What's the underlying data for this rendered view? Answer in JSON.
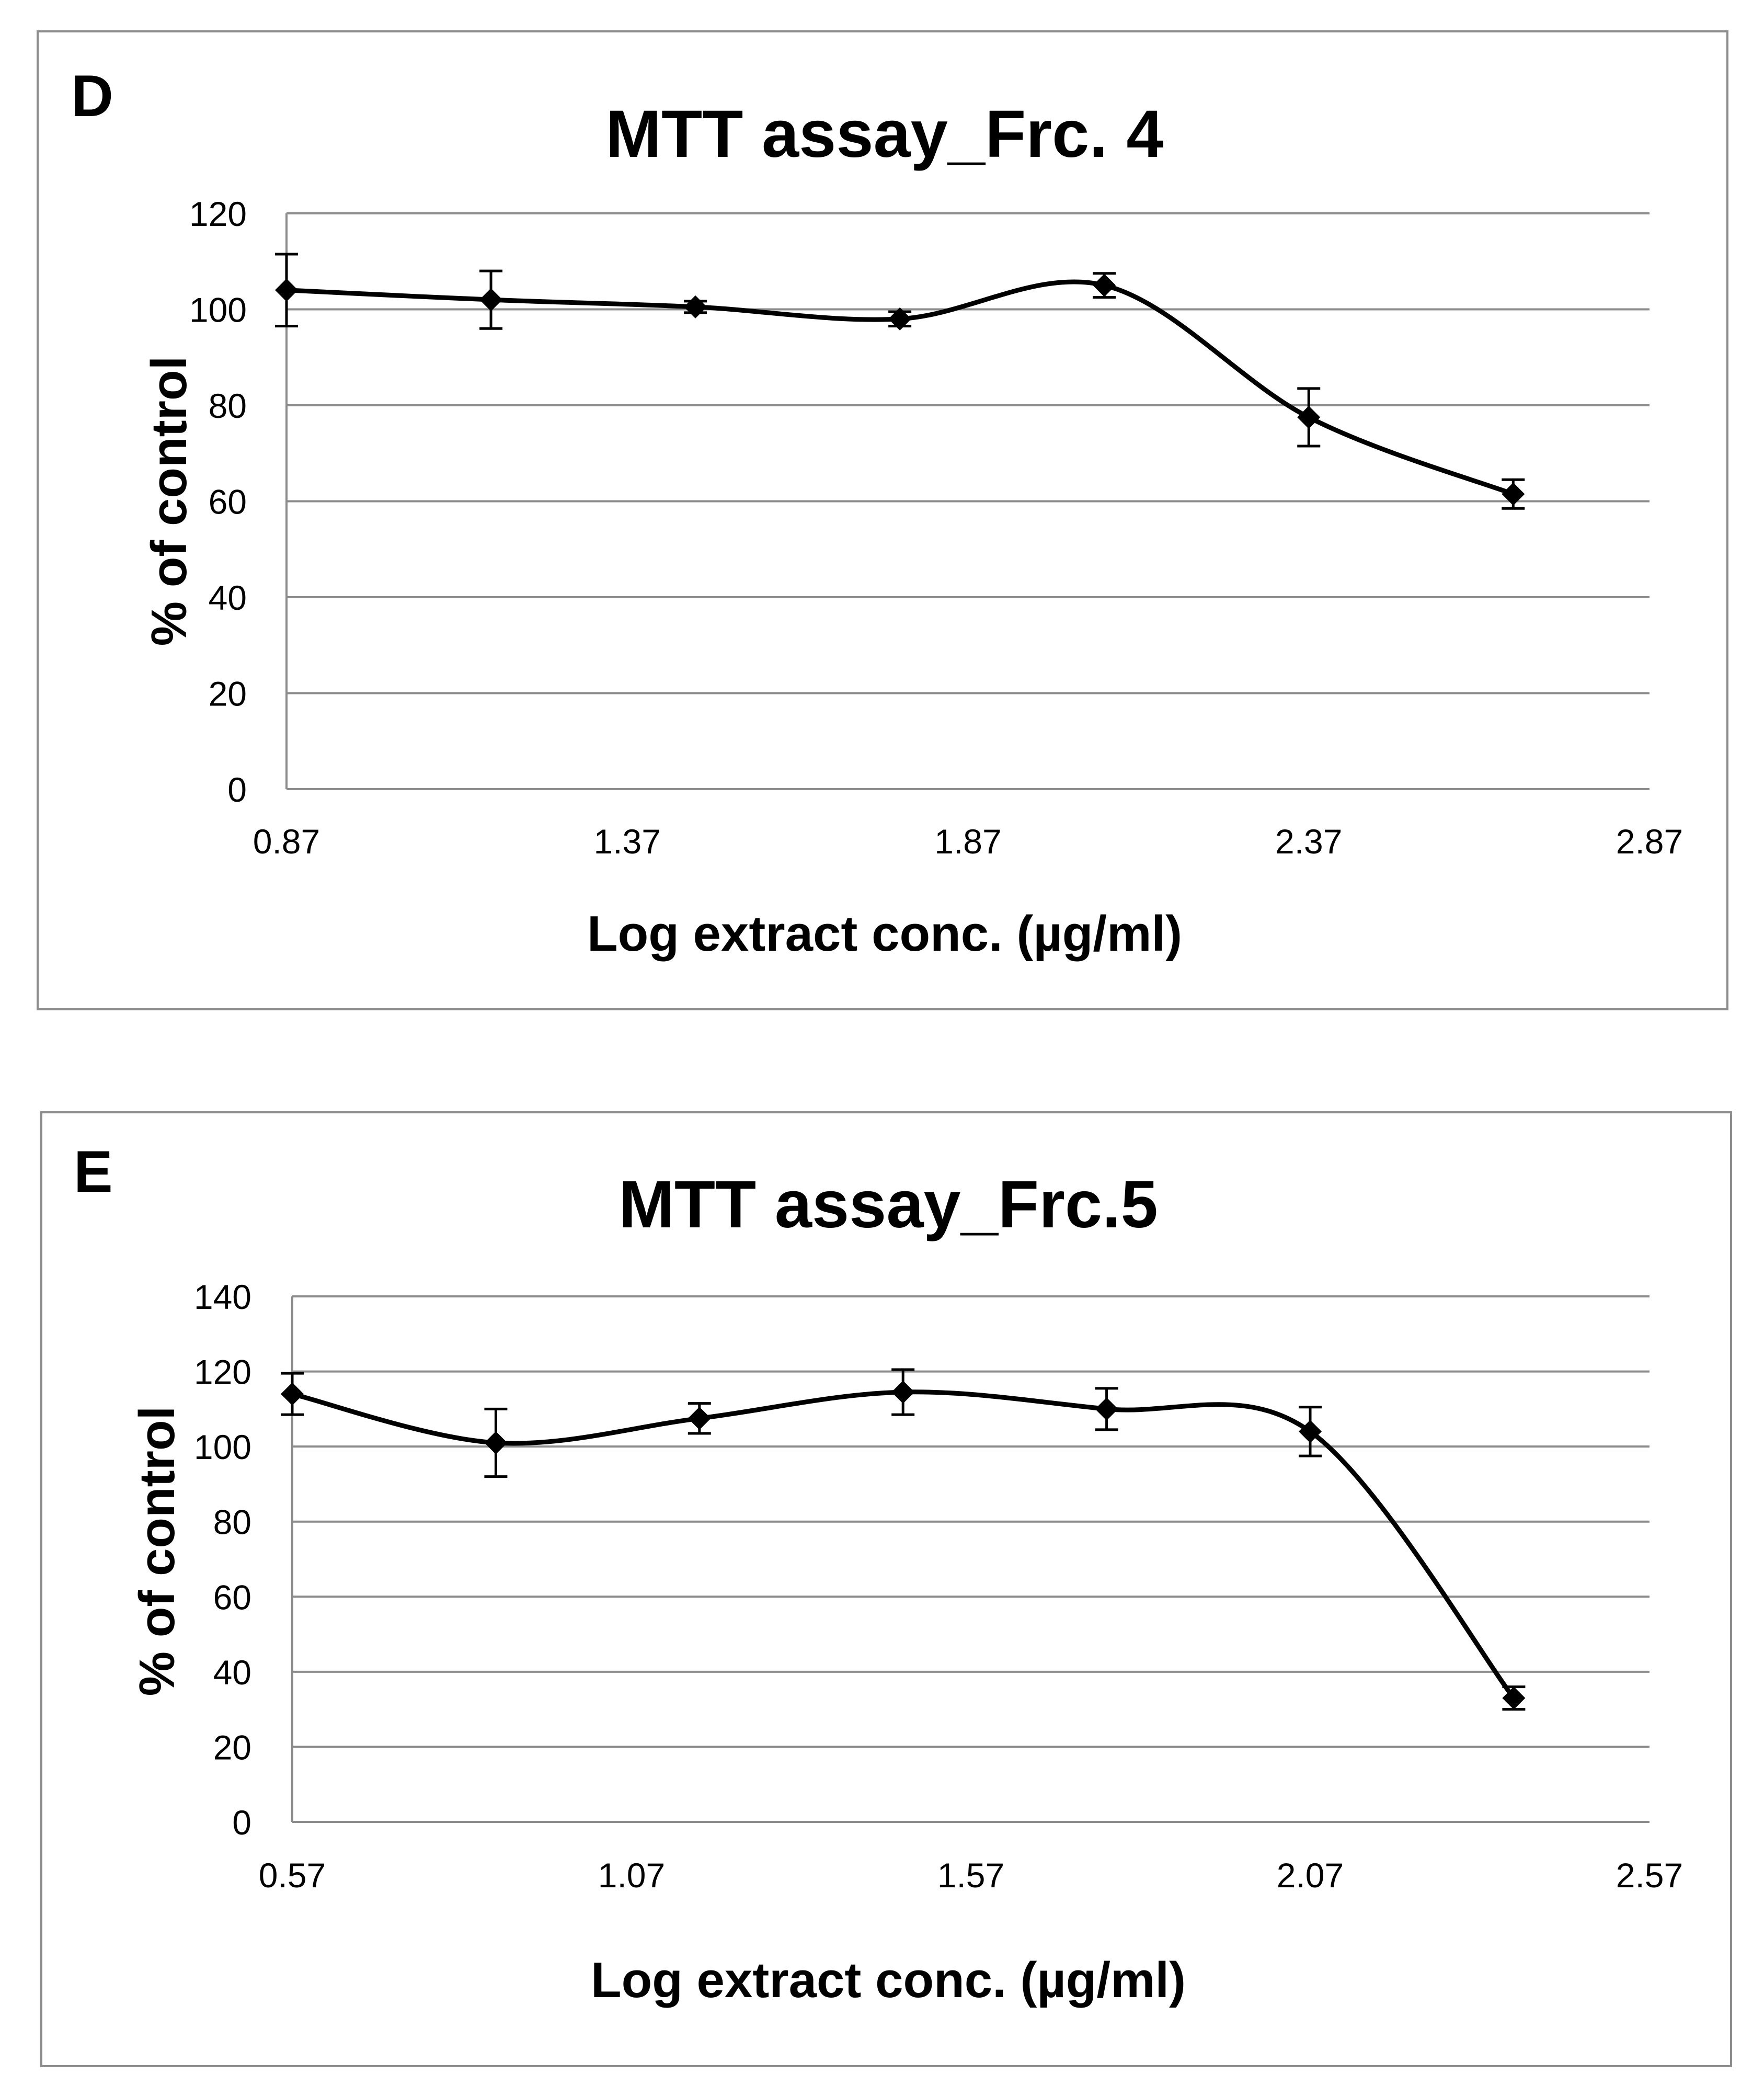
{
  "chart_data": [
    {
      "type": "line",
      "panel_label": "D",
      "title": "MTT assay_Frc. 4",
      "xlabel": "Log extract conc. (µg/ml)",
      "ylabel": "% of control",
      "xlim": [
        0.87,
        2.87
      ],
      "ylim": [
        0,
        120
      ],
      "x_ticks": [
        "0.87",
        "1.37",
        "1.87",
        "2.37",
        "2.87"
      ],
      "y_ticks": [
        "0",
        "20",
        "40",
        "60",
        "80",
        "100",
        "120"
      ],
      "grid": true,
      "series": [
        {
          "name": "Frc. 4",
          "x": [
            0.87,
            1.17,
            1.47,
            1.77,
            2.07,
            2.37,
            2.67
          ],
          "y": [
            104,
            102,
            100.5,
            98,
            105,
            77.5,
            61.5
          ],
          "error": [
            7.5,
            6,
            1.2,
            1.5,
            2.5,
            6,
            3
          ]
        }
      ]
    },
    {
      "type": "line",
      "panel_label": "E",
      "title": "MTT assay_Frc.5",
      "xlabel": "Log extract conc. (µg/ml)",
      "ylabel": "% of control",
      "xlim": [
        0.57,
        2.57
      ],
      "ylim": [
        0,
        140
      ],
      "x_ticks": [
        "0.57",
        "1.07",
        "1.57",
        "2.07",
        "2.57"
      ],
      "y_ticks": [
        "0",
        "20",
        "40",
        "60",
        "80",
        "100",
        "120",
        "140"
      ],
      "grid": true,
      "series": [
        {
          "name": "Frc.5",
          "x": [
            0.57,
            0.87,
            1.17,
            1.47,
            1.77,
            2.07,
            2.37
          ],
          "y": [
            114,
            101,
            107.5,
            114.5,
            110,
            104,
            33
          ],
          "error": [
            5.5,
            9,
            4,
            6,
            5.5,
            6.5,
            3
          ]
        }
      ]
    }
  ]
}
